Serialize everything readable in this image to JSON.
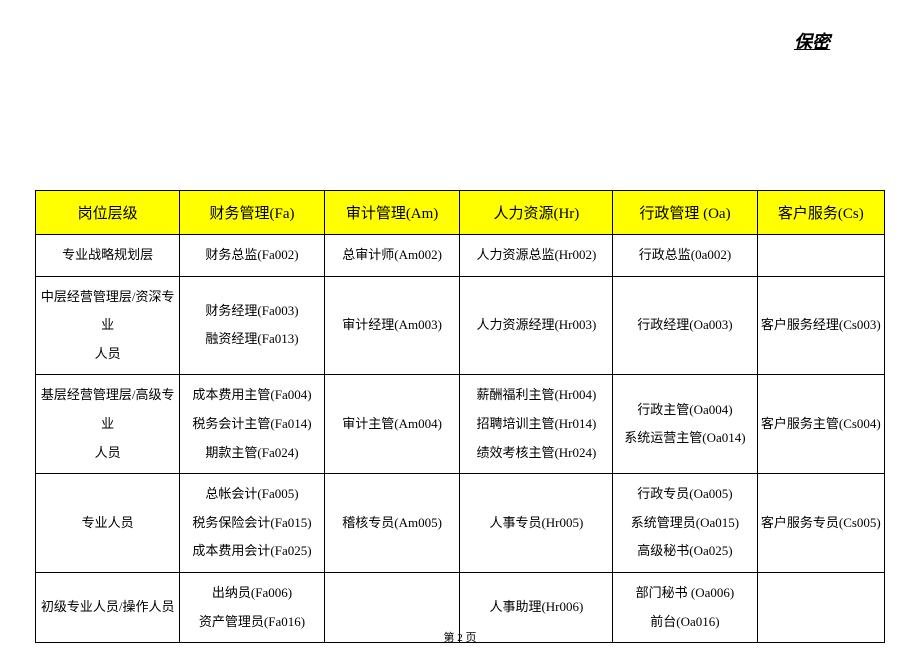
{
  "header": {
    "confidential_label": "保密"
  },
  "table": {
    "columns": [
      "岗位层级",
      "财务管理(Fa)",
      "审计管理(Am)",
      "人力资源(Hr)",
      "行政管理 (Oa)",
      "客户服务(Cs)"
    ],
    "rows": [
      {
        "c0": [
          "专业战略规划层"
        ],
        "c1": [
          "财务总监(Fa002)"
        ],
        "c2": [
          "总审计师(Am002)"
        ],
        "c3": [
          "人力资源总监(Hr002)"
        ],
        "c4": [
          "行政总监(0a002)"
        ],
        "c5": [
          ""
        ]
      },
      {
        "c0": [
          "中层经营管理层/资深专业",
          "人员"
        ],
        "c1": [
          "财务经理(Fa003)",
          "融资经理(Fa013)"
        ],
        "c2": [
          "审计经理(Am003)"
        ],
        "c3": [
          "人力资源经理(Hr003)"
        ],
        "c4": [
          "行政经理(Oa003)"
        ],
        "c5": [
          "客户服务经理(Cs003)"
        ]
      },
      {
        "c0": [
          "基层经营管理层/高级专业",
          "人员"
        ],
        "c1": [
          "成本费用主管(Fa004)",
          "税务会计主管(Fa014)",
          "期款主管(Fa024)"
        ],
        "c2": [
          "审计主管(Am004)"
        ],
        "c3": [
          "薪酬福利主管(Hr004)",
          "招聘培训主管(Hr014)",
          "绩效考核主管(Hr024)"
        ],
        "c4": [
          "行政主管(Oa004)",
          "系统运营主管(Oa014)"
        ],
        "c5": [
          "客户服务主管(Cs004)"
        ]
      },
      {
        "c0": [
          "专业人员"
        ],
        "c1": [
          "总帐会计(Fa005)",
          "税务保险会计(Fa015)",
          "成本费用会计(Fa025)"
        ],
        "c2": [
          "稽核专员(Am005)"
        ],
        "c3": [
          "人事专员(Hr005)"
        ],
        "c4": [
          "行政专员(Oa005)",
          "系统管理员(Oa015)",
          "高级秘书(Oa025)"
        ],
        "c5": [
          "客户服务专员(Cs005)"
        ]
      },
      {
        "c0": [
          "初级专业人员/操作人员"
        ],
        "c1": [
          "出纳员(Fa006)",
          "资产管理员(Fa016)"
        ],
        "c2": [
          ""
        ],
        "c3": [
          "人事助理(Hr006)"
        ],
        "c4": [
          "部门秘书 (Oa006)",
          "前台(Oa016)"
        ],
        "c5": [
          ""
        ]
      }
    ]
  },
  "footer": {
    "page_label": "第 2 页"
  },
  "styling": {
    "header_bg": "#ffff00",
    "border_color": "#000000",
    "background_color": "#ffffff",
    "header_fontsize": 15,
    "body_fontsize": 13,
    "footer_fontsize": 11,
    "confidential_fontsize": 18
  }
}
